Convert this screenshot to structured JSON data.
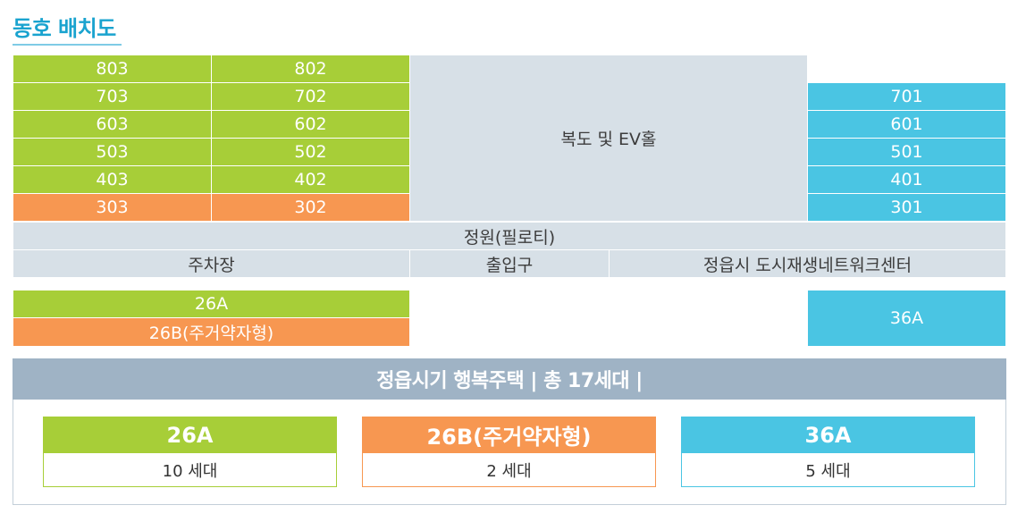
{
  "title": "동호 배치도",
  "building": {
    "col1": [
      "803",
      "703",
      "603",
      "503",
      "403",
      "303"
    ],
    "col2": [
      "802",
      "702",
      "602",
      "502",
      "402",
      "302"
    ],
    "col3": [
      "701",
      "601",
      "501",
      "401",
      "301"
    ],
    "corridor": "복도 및 EV홀",
    "garden": "정원(필로티)",
    "ground": {
      "parking": "주차장",
      "entrance": "출입구",
      "center": "정읍시 도시재생네트워크센터"
    }
  },
  "legend": {
    "type_26a": "26A",
    "type_26b": "26B(주거약자형)",
    "type_36a": "36A"
  },
  "summary": {
    "banner": "정읍시기 행복주택  | 총 17세대 |",
    "cards": [
      {
        "type": "26A",
        "count": "10 세대"
      },
      {
        "type": "26B(주거약자형)",
        "count": "2 세대"
      },
      {
        "type": "36A",
        "count": "5 세대"
      }
    ]
  },
  "colors": {
    "green": "#a7ce38",
    "orange": "#f79751",
    "blue": "#4ac5e3",
    "gray": "#d7e0e7",
    "banner": "#9fb3c5",
    "title": "#1aa3cf"
  }
}
